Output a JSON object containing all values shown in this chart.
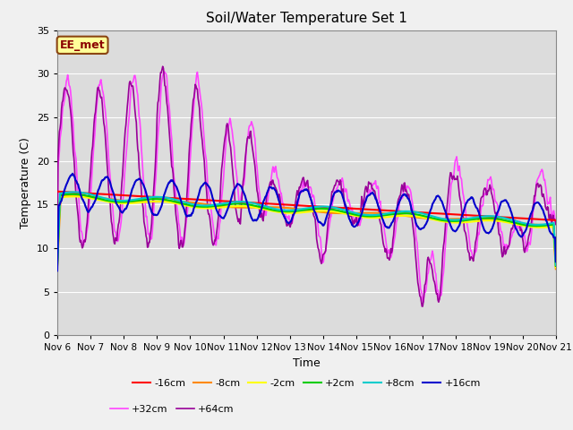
{
  "title": "Soil/Water Temperature Set 1",
  "xlabel": "Time",
  "ylabel": "Temperature (C)",
  "ylim": [
    0,
    35
  ],
  "yticks": [
    0,
    5,
    10,
    15,
    20,
    25,
    30,
    35
  ],
  "start_day": 6,
  "background_color": "#dcdcdc",
  "plot_bg": "#dcdcdc",
  "annotation_text": "EE_met",
  "annotation_bg": "#ffff99",
  "annotation_border": "#8B4513",
  "annotation_text_color": "#8B0000",
  "series": {
    "-16cm": {
      "color": "#ff0000",
      "lw": 1.5,
      "zorder": 6
    },
    "-8cm": {
      "color": "#ff8800",
      "lw": 1.5,
      "zorder": 6
    },
    "-2cm": {
      "color": "#ffff00",
      "lw": 1.5,
      "zorder": 6
    },
    "+2cm": {
      "color": "#00cc00",
      "lw": 1.5,
      "zorder": 6
    },
    "+8cm": {
      "color": "#00cccc",
      "lw": 1.5,
      "zorder": 6
    },
    "+16cm": {
      "color": "#0000cc",
      "lw": 1.5,
      "zorder": 6
    },
    "+32cm": {
      "color": "#ff44ff",
      "lw": 1.2,
      "zorder": 3
    },
    "+64cm": {
      "color": "#990099",
      "lw": 1.2,
      "zorder": 3
    }
  }
}
